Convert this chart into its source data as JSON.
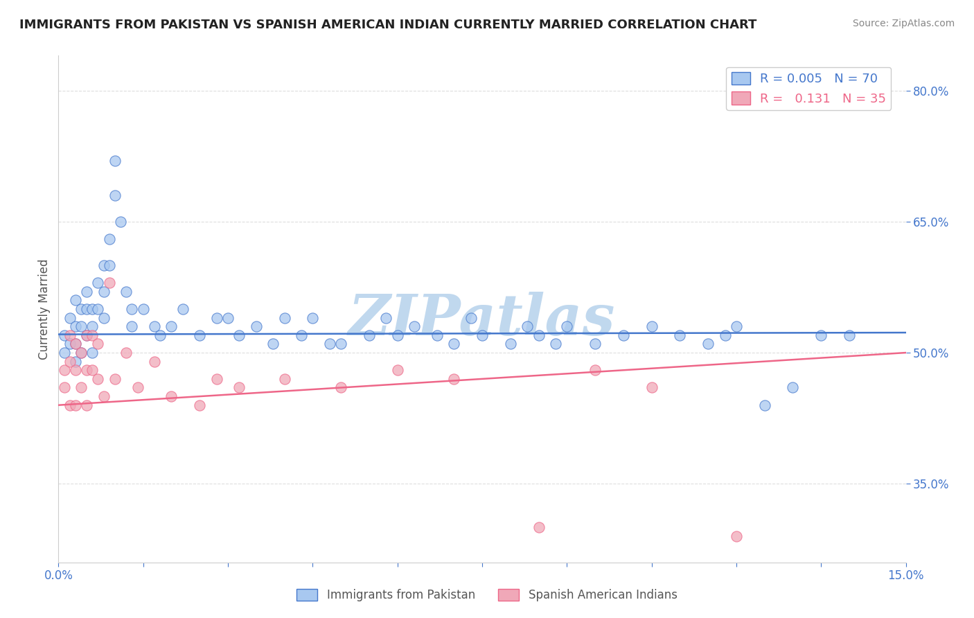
{
  "title": "IMMIGRANTS FROM PAKISTAN VS SPANISH AMERICAN INDIAN CURRENTLY MARRIED CORRELATION CHART",
  "source": "Source: ZipAtlas.com",
  "ylabel": "Currently Married",
  "xlim": [
    0.0,
    0.15
  ],
  "ylim": [
    0.26,
    0.84
  ],
  "yticks": [
    0.35,
    0.5,
    0.65,
    0.8
  ],
  "ytick_labels": [
    "35.0%",
    "50.0%",
    "65.0%",
    "80.0%"
  ],
  "xticks": [
    0.0,
    0.015,
    0.03,
    0.045,
    0.06,
    0.075,
    0.09,
    0.105,
    0.12,
    0.135,
    0.15
  ],
  "xtick_labels": [
    "0.0%",
    "",
    "",
    "",
    "",
    "",
    "",
    "",
    "",
    "",
    "15.0%"
  ],
  "series1_color": "#a8c8f0",
  "series2_color": "#f0a8b8",
  "series1_line_color": "#4477cc",
  "series2_line_color": "#ee6688",
  "series1_label": "Immigrants from Pakistan",
  "series2_label": "Spanish American Indians",
  "series1_R": "0.005",
  "series1_N": "70",
  "series2_R": "0.131",
  "series2_N": "35",
  "watermark": "ZIPatlas",
  "watermark_color": "#c0d8ee",
  "background_color": "#ffffff",
  "grid_color": "#dddddd",
  "series1_x": [
    0.001,
    0.001,
    0.002,
    0.002,
    0.003,
    0.003,
    0.003,
    0.003,
    0.004,
    0.004,
    0.004,
    0.005,
    0.005,
    0.005,
    0.006,
    0.006,
    0.006,
    0.007,
    0.007,
    0.008,
    0.008,
    0.008,
    0.009,
    0.009,
    0.01,
    0.01,
    0.011,
    0.012,
    0.013,
    0.013,
    0.015,
    0.017,
    0.018,
    0.02,
    0.022,
    0.025,
    0.028,
    0.03,
    0.032,
    0.035,
    0.038,
    0.04,
    0.043,
    0.045,
    0.048,
    0.05,
    0.055,
    0.058,
    0.06,
    0.063,
    0.067,
    0.07,
    0.073,
    0.075,
    0.08,
    0.083,
    0.085,
    0.088,
    0.09,
    0.095,
    0.1,
    0.105,
    0.11,
    0.115,
    0.118,
    0.12,
    0.125,
    0.13,
    0.135,
    0.14
  ],
  "series1_y": [
    0.52,
    0.5,
    0.54,
    0.51,
    0.56,
    0.53,
    0.51,
    0.49,
    0.55,
    0.53,
    0.5,
    0.57,
    0.55,
    0.52,
    0.55,
    0.53,
    0.5,
    0.58,
    0.55,
    0.6,
    0.57,
    0.54,
    0.63,
    0.6,
    0.68,
    0.72,
    0.65,
    0.57,
    0.55,
    0.53,
    0.55,
    0.53,
    0.52,
    0.53,
    0.55,
    0.52,
    0.54,
    0.54,
    0.52,
    0.53,
    0.51,
    0.54,
    0.52,
    0.54,
    0.51,
    0.51,
    0.52,
    0.54,
    0.52,
    0.53,
    0.52,
    0.51,
    0.54,
    0.52,
    0.51,
    0.53,
    0.52,
    0.51,
    0.53,
    0.51,
    0.52,
    0.53,
    0.52,
    0.51,
    0.52,
    0.53,
    0.44,
    0.46,
    0.52,
    0.52
  ],
  "series2_x": [
    0.001,
    0.001,
    0.002,
    0.002,
    0.002,
    0.003,
    0.003,
    0.003,
    0.004,
    0.004,
    0.005,
    0.005,
    0.005,
    0.006,
    0.006,
    0.007,
    0.007,
    0.008,
    0.009,
    0.01,
    0.012,
    0.014,
    0.017,
    0.02,
    0.025,
    0.028,
    0.032,
    0.04,
    0.05,
    0.06,
    0.07,
    0.085,
    0.095,
    0.105,
    0.12
  ],
  "series2_y": [
    0.48,
    0.46,
    0.52,
    0.49,
    0.44,
    0.51,
    0.48,
    0.44,
    0.5,
    0.46,
    0.52,
    0.48,
    0.44,
    0.52,
    0.48,
    0.51,
    0.47,
    0.45,
    0.58,
    0.47,
    0.5,
    0.46,
    0.49,
    0.45,
    0.44,
    0.47,
    0.46,
    0.47,
    0.46,
    0.48,
    0.47,
    0.3,
    0.48,
    0.46,
    0.29
  ],
  "series1_trend_y": [
    0.521,
    0.523
  ],
  "series2_trend_y": [
    0.44,
    0.5
  ],
  "trend1_color": "#4477cc",
  "trend2_color": "#ee6688"
}
